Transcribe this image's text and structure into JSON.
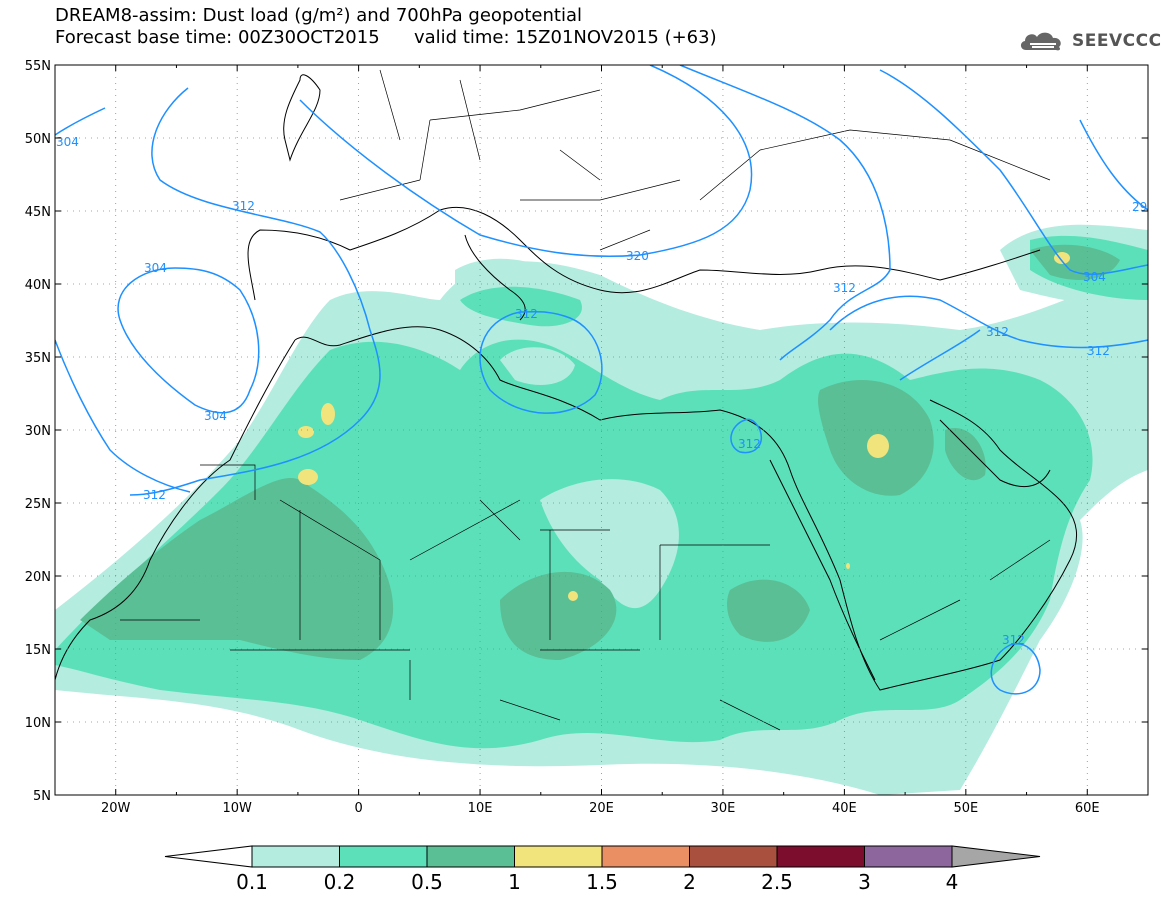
{
  "header": {
    "line1": "DREAM8-assim: Dust load (g/m²) and 700hPa geopotential",
    "line2": "Forecast base time: 00Z30OCT2015      valid time: 15Z01NOV2015 (+63)"
  },
  "logo": {
    "text": "SEEVCCC",
    "icon": "cloud-icon"
  },
  "axes": {
    "lat_labels": [
      "55N",
      "50N",
      "45N",
      "40N",
      "35N",
      "30N",
      "25N",
      "20N",
      "15N",
      "10N",
      "5N"
    ],
    "lat_values": [
      55,
      50,
      45,
      40,
      35,
      30,
      25,
      20,
      15,
      10,
      5
    ],
    "lon_labels": [
      "20W",
      "10W",
      "0",
      "10E",
      "20E",
      "30E",
      "40E",
      "50E",
      "60E"
    ],
    "lon_values": [
      -20,
      -10,
      0,
      10,
      20,
      30,
      40,
      50,
      60
    ],
    "lon_range": [
      -25,
      65
    ],
    "lat_range": [
      5,
      55
    ],
    "grid": "dotted"
  },
  "contour_labels": [
    "304",
    "312",
    "304",
    "304",
    "312",
    "320",
    "312",
    "312",
    "304",
    "312",
    "312",
    "312",
    "312",
    "29"
  ],
  "legend": {
    "labels": [
      "0.1",
      "0.2",
      "0.5",
      "1",
      "1.5",
      "2",
      "2.5",
      "3",
      "4"
    ],
    "colors": [
      "#b4ece0",
      "#5ce0ba",
      "#5bbf95",
      "#f2e47c",
      "#e98f63",
      "#a9503e",
      "#7c0d2d",
      "#8c669c",
      "#a6a6a6"
    ]
  },
  "colors": {
    "dust_01": "#b4ece0",
    "dust_02": "#5ce0ba",
    "dust_05": "#5bbf95",
    "dust_1": "#f2e47c",
    "contour": "#1e90ff"
  }
}
